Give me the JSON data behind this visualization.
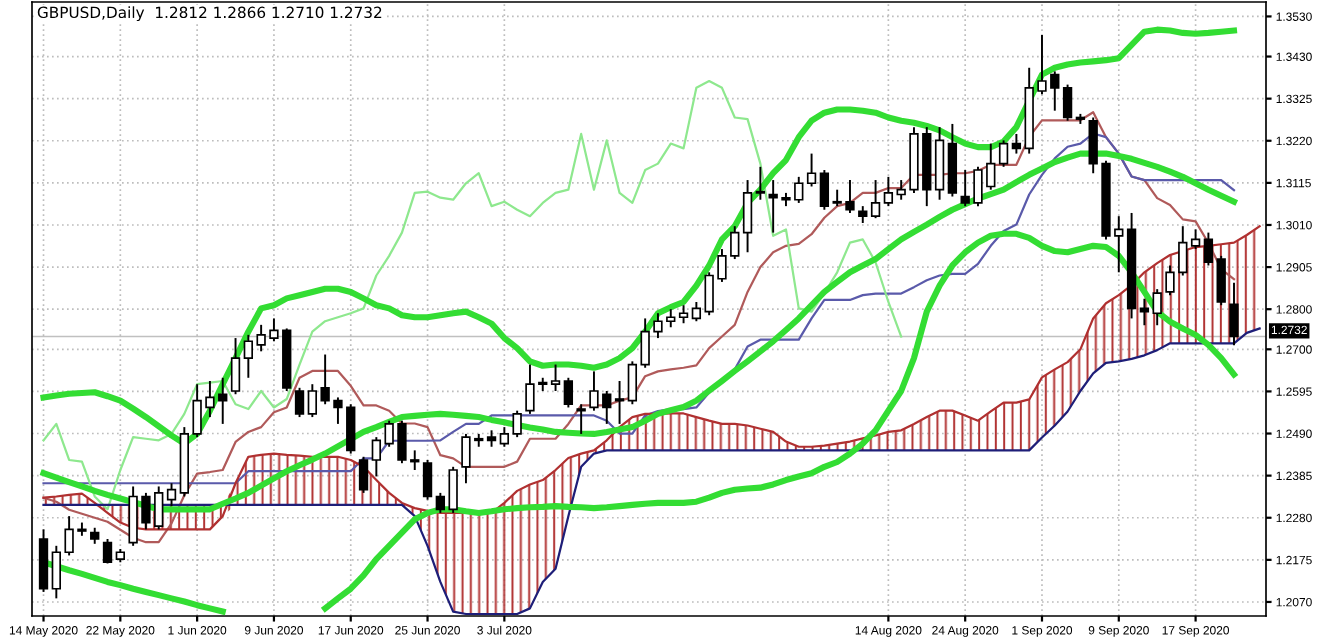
{
  "chart_data": {
    "type": "candlestick",
    "title": "GBPUSD,Daily  1.2812 1.2866 1.2710 1.2732",
    "color": "#000000",
    "grid": true,
    "categories": [
      "14 May 2020",
      null,
      null,
      null,
      null,
      null,
      "22 May 2020",
      null,
      null,
      null,
      null,
      null,
      "1 Jun 2020",
      null,
      null,
      null,
      null,
      null,
      "9 Jun 2020",
      null,
      null,
      null,
      null,
      null,
      "17 Jun 2020",
      null,
      null,
      null,
      null,
      null,
      "25 Jun 2020",
      null,
      null,
      null,
      null,
      null,
      "3 Jul 2020",
      null,
      null,
      null,
      null,
      null,
      null,
      null,
      null,
      null,
      null,
      null,
      null,
      null,
      null,
      null,
      null,
      null,
      null,
      null,
      null,
      null,
      null,
      null,
      null,
      null,
      null,
      null,
      null,
      null,
      "14 Aug 2020",
      null,
      null,
      null,
      null,
      null,
      "24 Aug 2020",
      null,
      null,
      null,
      null,
      null,
      "1 Sep 2020",
      null,
      null,
      null,
      null,
      null,
      "9 Sep 2020",
      null,
      null,
      null,
      null,
      null,
      "17 Sep 2020",
      null,
      null,
      null,
      null,
      null
    ],
    "ohlc": [
      [
        1.2227,
        1.2251,
        1.2095,
        1.2103
      ],
      [
        1.2103,
        1.221,
        1.2079,
        1.2194
      ],
      [
        1.2194,
        1.2284,
        1.2186,
        1.2251
      ],
      [
        1.2251,
        1.2268,
        1.2235,
        1.2247
      ],
      [
        1.2243,
        1.2255,
        1.2215,
        1.2227
      ],
      [
        1.2218,
        1.2227,
        1.2166,
        1.2169
      ],
      [
        1.2177,
        1.2202,
        1.2169,
        1.2194
      ],
      [
        1.2218,
        1.2358,
        1.221,
        1.2333
      ],
      [
        1.2333,
        1.2342,
        1.2251,
        1.2268
      ],
      [
        1.2259,
        1.2358,
        1.2251,
        1.2342
      ],
      [
        1.2325,
        1.2366,
        1.2309,
        1.235
      ],
      [
        1.2342,
        1.2506,
        1.2333,
        1.2489
      ],
      [
        1.2489,
        1.2613,
        1.2481,
        1.2572
      ],
      [
        1.2555,
        1.2621,
        1.2531,
        1.258
      ],
      [
        1.2588,
        1.2629,
        1.2514,
        1.2572
      ],
      [
        1.2596,
        1.2728,
        1.2588,
        1.2678
      ],
      [
        1.2678,
        1.2736,
        1.2629,
        1.272
      ],
      [
        1.2711,
        1.2761,
        1.2695,
        1.2736
      ],
      [
        1.2728,
        1.2777,
        1.272,
        1.2747
      ],
      [
        1.2747,
        1.2752,
        1.2596,
        1.2604
      ],
      [
        1.2596,
        1.2604,
        1.2531,
        1.2539
      ],
      [
        1.2539,
        1.2613,
        1.2531,
        1.2596
      ],
      [
        1.2604,
        1.2687,
        1.2563,
        1.2572
      ],
      [
        1.2572,
        1.258,
        1.2514,
        1.2555
      ],
      [
        1.2555,
        1.2563,
        1.244,
        1.2448
      ],
      [
        1.2424,
        1.2432,
        1.2342,
        1.235
      ],
      [
        1.2424,
        1.2481,
        1.2383,
        1.2473
      ],
      [
        1.2465,
        1.2522,
        1.2457,
        1.2514
      ],
      [
        1.2514,
        1.2522,
        1.2416,
        1.2424
      ],
      [
        1.2424,
        1.2448,
        1.2399,
        1.242
      ],
      [
        1.2416,
        1.2424,
        1.2325,
        1.2333
      ],
      [
        1.2333,
        1.2342,
        1.2292,
        1.2301
      ],
      [
        1.2301,
        1.2407,
        1.2292,
        1.2399
      ],
      [
        1.2407,
        1.2489,
        1.2366,
        1.2481
      ],
      [
        1.2473,
        1.2489,
        1.2457,
        1.2477
      ],
      [
        1.2481,
        1.2498,
        1.2457,
        1.2473
      ],
      [
        1.2465,
        1.2506,
        1.2457,
        1.2489
      ],
      [
        1.2489,
        1.2547,
        1.2481,
        1.2539
      ],
      [
        1.2547,
        1.2662,
        1.2539,
        1.2613
      ],
      [
        1.2613,
        1.2629,
        1.2596,
        1.2617
      ],
      [
        1.2613,
        1.2662,
        1.2596,
        1.2621
      ],
      [
        1.2621,
        1.2629,
        1.2555,
        1.2563
      ],
      [
        1.2547,
        1.2563,
        1.2489,
        1.2551
      ],
      [
        1.2555,
        1.2645,
        1.2547,
        1.2596
      ],
      [
        1.2588,
        1.2596,
        1.2514,
        1.2555
      ],
      [
        1.2572,
        1.2621,
        1.2514,
        1.2576
      ],
      [
        1.2572,
        1.267,
        1.2563,
        1.2662
      ],
      [
        1.2662,
        1.2777,
        1.2654,
        1.2744
      ],
      [
        1.2744,
        1.279,
        1.2728,
        1.277
      ],
      [
        1.277,
        1.28,
        1.2755,
        1.278
      ],
      [
        1.278,
        1.281,
        1.2765,
        1.279
      ],
      [
        1.2777,
        1.2818,
        1.277,
        1.2802
      ],
      [
        1.2794,
        1.2892,
        1.2785,
        1.2884
      ],
      [
        1.2876,
        1.295,
        1.2868,
        1.2933
      ],
      [
        1.2933,
        1.3007,
        1.2925,
        1.2991
      ],
      [
        1.2991,
        1.3122,
        1.2942,
        1.309
      ],
      [
        1.309,
        1.3155,
        1.3073,
        1.3093
      ],
      [
        1.3086,
        1.3122,
        1.2991,
        1.3078
      ],
      [
        1.3078,
        1.309,
        1.3057,
        1.3073
      ],
      [
        1.3073,
        1.313,
        1.3065,
        1.3114
      ],
      [
        1.3114,
        1.3188,
        1.3106,
        1.3139
      ],
      [
        1.3139,
        1.3147,
        1.3048,
        1.3057
      ],
      [
        1.3065,
        1.3098,
        1.3057,
        1.3068
      ],
      [
        1.3068,
        1.3122,
        1.304,
        1.3048
      ],
      [
        1.3044,
        1.3057,
        1.3015,
        1.3032
      ],
      [
        1.3032,
        1.3122,
        1.3027,
        1.3065
      ],
      [
        1.3065,
        1.313,
        1.3057,
        1.309
      ],
      [
        1.3086,
        1.3122,
        1.3073,
        1.3098
      ],
      [
        1.3098,
        1.3254,
        1.309,
        1.3237
      ],
      [
        1.3237,
        1.3254,
        1.3057,
        1.3098
      ],
      [
        1.3098,
        1.3254,
        1.3073,
        1.3221
      ],
      [
        1.3213,
        1.3262,
        1.3081,
        1.309
      ],
      [
        1.3081,
        1.3147,
        1.3057,
        1.3065
      ],
      [
        1.3065,
        1.3155,
        1.3057,
        1.3147
      ],
      [
        1.3106,
        1.3213,
        1.3098,
        1.3163
      ],
      [
        1.3163,
        1.3221,
        1.3155,
        1.3213
      ],
      [
        1.3213,
        1.3237,
        1.3188,
        1.3201
      ],
      [
        1.3201,
        1.3402,
        1.3188,
        1.3352
      ],
      [
        1.3344,
        1.3484,
        1.3336,
        1.3369
      ],
      [
        1.3385,
        1.3393,
        1.3295,
        1.3352
      ],
      [
        1.3352,
        1.336,
        1.327,
        1.3278
      ],
      [
        1.3278,
        1.3287,
        1.3262,
        1.3274
      ],
      [
        1.327,
        1.3278,
        1.3139,
        1.3163
      ],
      [
        1.3163,
        1.317,
        1.2974,
        1.2983
      ],
      [
        1.2983,
        1.3032,
        1.2892,
        1.2999
      ],
      [
        1.2999,
        1.304,
        1.2777,
        1.2802
      ],
      [
        1.2802,
        1.2826,
        1.276,
        1.2794
      ],
      [
        1.279,
        1.285,
        1.276,
        1.284
      ],
      [
        1.2843,
        1.2909,
        1.2835,
        1.2892
      ],
      [
        1.2892,
        1.3007,
        1.2884,
        1.2966
      ],
      [
        1.2958,
        1.2999,
        1.295,
        1.2974
      ],
      [
        1.2974,
        1.2991,
        1.2909,
        1.2917
      ],
      [
        1.2925,
        1.2933,
        1.281,
        1.2818
      ],
      [
        1.2812,
        1.2866,
        1.271,
        1.2732
      ],
      null,
      null
    ],
    "series": [
      {
        "type": "line",
        "color": "#33dd33",
        "values": [
          1.2391,
          1.238,
          1.2369,
          1.2358,
          1.2347,
          1.2337,
          1.2328,
          1.2319,
          1.231,
          1.2301,
          1.2301,
          1.2301,
          1.2301,
          1.2301,
          1.2315,
          1.2328,
          1.2342,
          1.236,
          1.2378,
          1.2396,
          1.2411,
          1.2425,
          1.244,
          1.2458,
          1.2476,
          1.2494,
          1.2506,
          1.2519,
          1.2531,
          1.2534,
          1.2537,
          1.2539,
          1.2537,
          1.2534,
          1.2531,
          1.2524,
          1.2518,
          1.2511,
          1.2505,
          1.25,
          1.2494,
          1.2492,
          1.249,
          1.2489,
          1.2494,
          1.25,
          1.2506,
          1.2522,
          1.2539,
          1.2548,
          1.2556,
          1.2572,
          1.2597,
          1.2621,
          1.2646,
          1.267,
          1.2695,
          1.272,
          1.2748,
          1.2777,
          1.281,
          1.2843,
          1.2868,
          1.2892,
          1.2909,
          1.2925,
          1.295,
          1.2974,
          1.2993,
          1.3011,
          1.303,
          1.3048,
          1.3062,
          1.3076,
          1.3087,
          1.3098,
          1.3117,
          1.3135,
          1.3151,
          1.3167,
          1.3178,
          1.3188,
          1.3188,
          1.3188,
          1.3182,
          1.3175,
          1.3165,
          1.3155,
          1.3143,
          1.313,
          1.3114,
          1.3098,
          1.3083,
          1.3068,
          null,
          null
        ]
      },
      {
        "type": "line",
        "color": "#33dd33",
        "values": [
          1.258,
          1.2585,
          1.2589,
          1.2591,
          1.2593,
          1.2583,
          1.2572,
          1.2552,
          1.2531,
          1.2508,
          1.2485,
          1.2465,
          1.2489,
          1.2547,
          1.2613,
          1.2678,
          1.2744,
          1.2802,
          1.281,
          1.2827,
          1.2835,
          1.2843,
          1.2851,
          1.2851,
          1.2843,
          1.2827,
          1.281,
          1.2802,
          1.2785,
          1.278,
          1.278,
          1.2785,
          1.279,
          1.2794,
          1.278,
          1.2764,
          1.2728,
          1.2703,
          1.267,
          1.2659,
          1.2662,
          1.2662,
          1.2659,
          1.2654,
          1.2662,
          1.2678,
          1.2703,
          1.2744,
          1.279,
          1.2805,
          1.2818,
          1.2859,
          1.2909,
          1.2974,
          1.3007,
          1.3065,
          1.3098,
          1.3139,
          1.3172,
          1.3229,
          1.327,
          1.329,
          1.3298,
          1.3298,
          1.3295,
          1.329,
          1.3278,
          1.327,
          1.3265,
          1.3257,
          1.3246,
          1.3229,
          1.3213,
          1.3204,
          1.3204,
          1.3218,
          1.3254,
          1.332,
          1.3385,
          1.3402,
          1.341,
          1.3415,
          1.3418,
          1.3421,
          1.3426,
          1.3459,
          1.3492,
          1.3497,
          1.3495,
          1.3489,
          1.3487,
          1.3489,
          1.3492,
          1.3495,
          null,
          null
        ]
      },
      {
        "type": "line",
        "color": "#33dd33",
        "values": [
          1.2169,
          1.2159,
          1.2149,
          1.214,
          1.213,
          1.212,
          1.2112,
          1.2103,
          1.2095,
          1.2087,
          1.2079,
          1.2071,
          1.2062,
          1.2054,
          1.2046,
          null,
          null,
          null,
          null,
          null,
          null,
          null,
          1.2054,
          1.2079,
          1.2103,
          1.2136,
          1.2177,
          1.221,
          1.2243,
          1.2276,
          1.2292,
          1.2301,
          1.2301,
          1.2296,
          1.2292,
          1.2296,
          1.2301,
          1.2304,
          1.2306,
          1.2307,
          1.2309,
          1.2307,
          1.2306,
          1.2304,
          1.2306,
          1.2309,
          1.2312,
          1.2315,
          1.2317,
          1.2317,
          1.2317,
          1.232,
          1.233,
          1.2342,
          1.235,
          1.2353,
          1.2355,
          1.2363,
          1.2374,
          1.2383,
          1.2391,
          1.2407,
          1.2419,
          1.244,
          1.2465,
          1.2498,
          1.2547,
          1.2596,
          1.2678,
          1.2794,
          1.2859,
          1.2909,
          1.2942,
          1.2966,
          1.2983,
          1.2988,
          1.2988,
          1.2978,
          1.2958,
          1.2945,
          1.2942,
          1.295,
          1.2958,
          1.2955,
          1.2933,
          1.2892,
          1.2843,
          1.2794,
          1.2769,
          1.2752,
          1.2736,
          1.2711,
          1.2678,
          1.2637,
          null,
          null
        ]
      },
      {
        "type": "line",
        "color": "#b05a5a",
        "values": [
          1.233,
          1.232,
          1.23,
          1.229,
          1.228,
          1.227,
          1.225,
          1.223,
          1.2219,
          1.2219,
          1.2266,
          1.2336,
          1.239,
          1.2394,
          1.2399,
          1.2469,
          1.2494,
          1.2506,
          1.2543,
          1.2555,
          1.2629,
          1.2646,
          1.2646,
          1.2646,
          1.2609,
          1.256,
          1.256,
          1.2547,
          1.2515,
          1.2515,
          1.2506,
          1.2436,
          1.2428,
          1.2407,
          1.2407,
          1.2407,
          1.2407,
          1.242,
          1.2477,
          1.2477,
          1.2477,
          1.2514,
          1.256,
          1.256,
          1.256,
          1.2572,
          1.258,
          1.2633,
          1.2645,
          1.265,
          1.2654,
          1.266,
          1.2703,
          1.2732,
          1.2761,
          1.2843,
          1.2905,
          1.2942,
          1.2958,
          1.2963,
          1.2987,
          1.3028,
          1.3057,
          1.3065,
          1.309,
          1.309,
          1.3102,
          1.3102,
          1.3135,
          1.3135,
          1.3135,
          1.3139,
          1.3139,
          1.3145,
          1.316,
          1.316,
          1.316,
          1.323,
          1.3271,
          1.3271,
          1.3271,
          1.3271,
          1.3291,
          1.3229,
          1.3188,
          1.3131,
          1.3122,
          1.3077,
          1.306,
          1.3024,
          1.3019,
          1.2965,
          1.29,
          1.2875,
          null,
          null
        ]
      },
      {
        "type": "line",
        "color": "#5a5aaa",
        "values": [
          1.2366,
          1.2366,
          1.2366,
          1.2366,
          1.2366,
          1.2366,
          1.2366,
          1.2366,
          1.2366,
          1.2366,
          1.2366,
          1.2366,
          1.2366,
          1.2366,
          1.2366,
          1.2366,
          1.2396,
          1.2396,
          1.2396,
          1.2396,
          1.2396,
          1.2396,
          1.2396,
          1.2396,
          1.2396,
          1.2428,
          1.2428,
          1.2472,
          1.2472,
          1.2472,
          1.2472,
          1.2473,
          1.2494,
          1.2514,
          1.2514,
          1.2535,
          1.2535,
          1.2535,
          1.2535,
          1.2535,
          1.2535,
          1.2535,
          1.2535,
          1.2535,
          1.2522,
          1.249,
          1.249,
          1.2535,
          1.2546,
          1.2551,
          1.2551,
          1.2555,
          1.2592,
          1.2621,
          1.265,
          1.2707,
          1.2724,
          1.2724,
          1.2724,
          1.2724,
          1.2777,
          1.2823,
          1.2823,
          1.2823,
          1.2835,
          1.2839,
          1.2839,
          1.2839,
          1.2855,
          1.2872,
          1.2884,
          1.2888,
          1.2888,
          1.2913,
          1.2958,
          1.2995,
          1.3011,
          1.3086,
          1.3135,
          1.3176,
          1.3205,
          1.3213,
          1.3238,
          1.3229,
          1.3188,
          1.3131,
          1.3122,
          1.3122,
          1.3122,
          1.3122,
          1.3122,
          1.3122,
          1.3122,
          1.3097,
          null,
          null
        ]
      },
      {
        "type": "line",
        "color": "#8ee88e",
        "values": [
          1.2473,
          1.2514,
          1.2424,
          1.242,
          1.2333,
          1.2301,
          1.2399,
          1.2481,
          1.2477,
          1.2473,
          1.2489,
          1.2539,
          1.2613,
          1.2617,
          1.2621,
          1.2563,
          1.2551,
          1.2596,
          1.2555,
          1.2576,
          1.2662,
          1.2744,
          1.277,
          1.278,
          1.279,
          1.2802,
          1.2884,
          1.2933,
          1.2991,
          1.309,
          1.3093,
          1.3078,
          1.3073,
          1.3114,
          1.3139,
          1.3057,
          1.3068,
          1.3048,
          1.3032,
          1.3065,
          1.309,
          1.3098,
          1.3237,
          1.3098,
          1.3221,
          1.309,
          1.3065,
          1.3147,
          1.3163,
          1.3213,
          1.3201,
          1.3352,
          1.3369,
          1.3352,
          1.3278,
          1.3274,
          1.3163,
          1.2983,
          1.2999,
          1.2802,
          1.2794,
          1.284,
          1.2892,
          1.2966,
          1.2974,
          1.2917,
          1.2818,
          1.2732,
          null,
          null,
          null,
          null,
          null,
          null,
          null,
          null,
          null,
          null,
          null,
          null,
          null,
          null,
          null,
          null,
          null,
          null,
          null,
          null,
          null,
          null,
          null,
          null,
          null,
          null,
          null,
          null
        ]
      },
      {
        "type": "line",
        "color": "#b03030",
        "values": [
          1.233,
          1.2333,
          1.2337,
          1.234,
          1.2317,
          1.2292,
          1.2268,
          1.2255,
          1.2251,
          1.2251,
          1.2251,
          1.2251,
          1.2251,
          1.2251,
          1.2284,
          1.2366,
          1.2432,
          1.2437,
          1.244,
          1.2437,
          1.2435,
          1.2432,
          1.2432,
          1.2432,
          1.2424,
          1.2407,
          1.2374,
          1.2342,
          1.2317,
          1.2304,
          1.2297,
          1.2292,
          1.2292,
          1.2292,
          1.2292,
          1.2292,
          1.2317,
          1.2347,
          1.2363,
          1.2374,
          1.2399,
          1.2429,
          1.244,
          1.2448,
          1.2473,
          1.2506,
          1.2531,
          1.2539,
          1.2539,
          1.254,
          1.254,
          1.2531,
          1.2522,
          1.2514,
          1.2514,
          1.251,
          1.2502,
          1.2494,
          1.247,
          1.2457,
          1.2457,
          1.246,
          1.2465,
          1.247,
          1.2478,
          1.2485,
          1.2494,
          1.2498,
          1.2514,
          1.2531,
          1.2547,
          1.2547,
          1.2535,
          1.2522,
          1.2545,
          1.2567,
          1.2567,
          1.2575,
          1.263,
          1.265,
          1.2668,
          1.27,
          1.2777,
          1.2815,
          1.2835,
          1.286,
          1.2892,
          1.2915,
          1.2935,
          1.2945,
          1.2955,
          1.2958,
          1.2962,
          1.2966,
          1.2985,
          1.3007
        ],
        "upper": [
          1.233,
          1.2333,
          1.2337,
          1.234,
          1.2317,
          1.2312,
          1.2312,
          1.2312,
          1.2312,
          1.2312,
          1.2312,
          1.2312,
          1.2312,
          1.2312,
          1.2312,
          1.2366,
          1.2432,
          1.2437,
          1.244,
          1.2437,
          1.2435,
          1.2432,
          1.2432,
          1.2432,
          1.2424,
          1.2407,
          1.2374,
          1.2342,
          1.2317,
          1.2304,
          1.2297,
          1.2292,
          1.2292,
          1.2292,
          1.2292,
          1.2292,
          1.2317,
          1.2347,
          1.2363,
          1.2374,
          1.2399,
          1.2429,
          1.244,
          1.2448,
          1.2473,
          1.2506,
          1.2531,
          1.2539,
          1.2539,
          1.254,
          1.254,
          1.2531,
          1.2522,
          1.2514,
          1.2514,
          1.251,
          1.2502,
          1.2494,
          1.247,
          1.2457,
          1.2457,
          1.246,
          1.2465,
          1.247,
          1.2478,
          1.2485,
          1.2494,
          1.2498,
          1.2514,
          1.2531,
          1.2547,
          1.2547,
          1.2535,
          1.2522,
          1.2545,
          1.2567,
          1.2567,
          1.2575,
          1.263,
          1.265,
          1.2668,
          1.27,
          1.2777,
          1.2815,
          1.2835,
          1.286,
          1.2892,
          1.2915,
          1.2935,
          1.2945,
          1.2955,
          1.2958,
          1.2962,
          1.2966,
          1.2985,
          1.3007
        ],
        "lower": [
          1.2312,
          1.2312,
          1.2312,
          1.2312,
          1.2312,
          1.2292,
          1.2268,
          1.2255,
          1.2251,
          1.2251,
          1.2251,
          1.2251,
          1.2251,
          1.2251,
          1.2284,
          1.2312,
          1.2312,
          1.2312,
          1.2312,
          1.2312,
          1.2312,
          1.2312,
          1.2312,
          1.2312,
          1.2312,
          1.2312,
          1.2312,
          1.2312,
          1.2312,
          1.2284,
          1.221,
          1.212,
          1.2046,
          1.204,
          1.204,
          1.204,
          1.204,
          1.204,
          1.2054,
          1.212,
          1.2153,
          1.2284,
          1.2407,
          1.244,
          1.2448,
          1.2448,
          1.2448,
          1.2448,
          1.2448,
          1.2448,
          1.2448,
          1.2448,
          1.2448,
          1.2448,
          1.2448,
          1.2448,
          1.2448,
          1.2448,
          1.2448,
          1.2448,
          1.2448,
          1.2448,
          1.2448,
          1.2448,
          1.2448,
          1.2448,
          1.2448,
          1.2448,
          1.2448,
          1.2448,
          1.2448,
          1.2448,
          1.2448,
          1.2448,
          1.2448,
          1.2448,
          1.2448,
          1.2448,
          1.248,
          1.251,
          1.2545,
          1.2596,
          1.264,
          1.2666,
          1.267,
          1.2676,
          1.2685,
          1.2698,
          1.2715,
          1.2715,
          1.2715,
          1.2715,
          1.2715,
          1.2715,
          1.2741,
          1.2752
        ]
      },
      {
        "type": "line",
        "color": "#1e1e78",
        "values": [
          1.2312,
          1.2312,
          1.2312,
          1.2312,
          1.2312,
          1.2312,
          1.2312,
          1.2312,
          1.2312,
          1.2312,
          1.2312,
          1.2312,
          1.2312,
          1.2312,
          1.2312,
          1.2312,
          1.2312,
          1.2312,
          1.2312,
          1.2312,
          1.2312,
          1.2312,
          1.2312,
          1.2312,
          1.2312,
          1.2312,
          1.2312,
          1.2312,
          1.2312,
          1.2284,
          1.221,
          1.212,
          1.2046,
          1.204,
          1.204,
          1.204,
          1.204,
          1.204,
          1.2054,
          1.212,
          1.2153,
          1.2284,
          1.2407,
          1.244,
          1.2448,
          1.2448,
          1.2448,
          1.2448,
          1.2448,
          1.2448,
          1.2448,
          1.2448,
          1.2448,
          1.2448,
          1.2448,
          1.2448,
          1.2448,
          1.2448,
          1.2448,
          1.2448,
          1.2448,
          1.2448,
          1.2448,
          1.2448,
          1.2448,
          1.2448,
          1.2448,
          1.2448,
          1.2448,
          1.2448,
          1.2448,
          1.2448,
          1.2448,
          1.2448,
          1.2448,
          1.2448,
          1.2448,
          1.2448,
          1.248,
          1.251,
          1.2545,
          1.2596,
          1.264,
          1.2666,
          1.267,
          1.2676,
          1.2685,
          1.2698,
          1.2715,
          1.2715,
          1.2715,
          1.2715,
          1.2715,
          1.2715,
          1.2741,
          1.2752
        ]
      }
    ],
    "ylim": [
      1.2035,
      1.3566
    ],
    "yticks": [
      {
        "value": 1.353,
        "label": "1.3530"
      },
      {
        "value": 1.343,
        "label": "1.3430"
      },
      1.3325,
      {
        "value": 1.322,
        "label": "1.3220"
      },
      1.3115,
      {
        "value": 1.301,
        "label": "1.3010"
      },
      1.2905,
      {
        "value": 1.28,
        "label": "1.2800"
      },
      {
        "value": 1.27,
        "label": "1.2700"
      },
      1.2595,
      {
        "value": 1.249,
        "label": "1.2490"
      },
      1.2385,
      {
        "value": 1.228,
        "label": "1.2280"
      },
      1.2175,
      {
        "value": 1.207,
        "label": "1.2070"
      }
    ],
    "ref_lines": [
      {
        "axis": "y",
        "value": 1.2732,
        "label": "1.2732",
        "color": "#c0c0c0"
      }
    ]
  }
}
